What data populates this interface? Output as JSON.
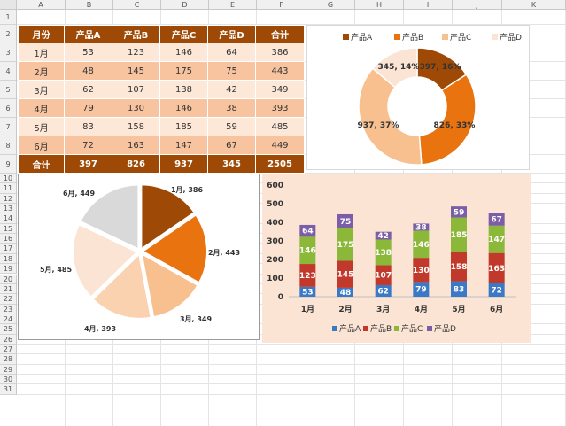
{
  "sheet": {
    "columns": [
      "A",
      "B",
      "C",
      "D",
      "E",
      "F",
      "G",
      "H",
      "I",
      "J",
      "K"
    ],
    "rows": [
      "1",
      "2",
      "3",
      "4",
      "5",
      "6",
      "7",
      "8",
      "9",
      "10",
      "11",
      "12",
      "13",
      "14",
      "15",
      "16",
      "17",
      "18",
      "19",
      "20",
      "21",
      "22",
      "23",
      "24",
      "25",
      "26",
      "27",
      "28",
      "29",
      "30",
      "31"
    ]
  },
  "table": {
    "headers": [
      "月份",
      "产品A",
      "产品B",
      "产品C",
      "产品D",
      "合计"
    ],
    "rows": [
      [
        "1月",
        "53",
        "123",
        "146",
        "64",
        "386"
      ],
      [
        "2月",
        "48",
        "145",
        "175",
        "75",
        "443"
      ],
      [
        "3月",
        "62",
        "107",
        "138",
        "42",
        "349"
      ],
      [
        "4月",
        "79",
        "130",
        "146",
        "38",
        "393"
      ],
      [
        "5月",
        "83",
        "158",
        "185",
        "59",
        "485"
      ],
      [
        "6月",
        "72",
        "163",
        "147",
        "67",
        "449"
      ]
    ],
    "total": [
      "合计",
      "397",
      "826",
      "937",
      "345",
      "2505"
    ]
  },
  "colors": {
    "a": "#9e4a06",
    "b": "#e9730f",
    "c": "#f8bf8f",
    "d": "#fbe4d3",
    "stackA": "#3b78c6",
    "stackB": "#c0392b",
    "stackC": "#8cb83a",
    "stackD": "#7b5ea7"
  },
  "chart_data": [
    {
      "type": "pie",
      "variant": "donut",
      "legend": [
        "产品A",
        "产品B",
        "产品C",
        "产品D"
      ],
      "values": [
        397,
        826,
        937,
        345
      ],
      "labels": [
        "397, 16%",
        "826, 33%",
        "937, 37%",
        "345, 14%"
      ]
    },
    {
      "type": "pie",
      "categories": [
        "1月",
        "2月",
        "3月",
        "4月",
        "5月",
        "6月"
      ],
      "values": [
        386,
        443,
        349,
        393,
        485,
        449
      ],
      "labels": [
        "1月, 386",
        "2月, 443",
        "3月, 349",
        "4月, 393",
        "5月, 485",
        "6月, 449"
      ],
      "colors": [
        "#9e4a06",
        "#e9730f",
        "#f8bf8f",
        "#fbd2b0",
        "#fbe4d3",
        "#d9d9d9"
      ]
    },
    {
      "type": "bar",
      "stacked": true,
      "categories": [
        "1月",
        "2月",
        "3月",
        "4月",
        "5月",
        "6月"
      ],
      "series": [
        {
          "name": "产品A",
          "values": [
            53,
            48,
            62,
            79,
            83,
            72
          ]
        },
        {
          "name": "产品B",
          "values": [
            123,
            145,
            107,
            130,
            158,
            163
          ]
        },
        {
          "name": "产品C",
          "values": [
            146,
            175,
            138,
            146,
            185,
            147
          ]
        },
        {
          "name": "产品D",
          "values": [
            64,
            75,
            42,
            38,
            59,
            67
          ]
        }
      ],
      "yticks": [
        "0",
        "100",
        "200",
        "300",
        "400",
        "500",
        "600"
      ],
      "ylim": [
        0,
        600
      ]
    }
  ]
}
